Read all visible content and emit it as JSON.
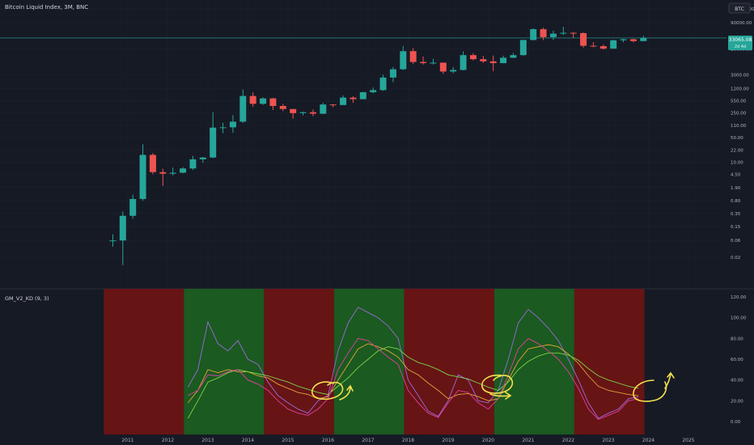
{
  "header": {
    "symbol_title": "Bitcoin Liquid Index, 3M, BNC",
    "symbol_button": "BTC"
  },
  "price_badge": {
    "value": "33065.08",
    "sub": "2d 4d"
  },
  "indicator": {
    "title": "GM_V2_KD (9, 3)"
  },
  "colors": {
    "background": "#161a25",
    "bull": "#26a69a",
    "bear": "#ef5350",
    "bull_band": "#1b5e20",
    "bear_band": "#6b1414",
    "k_line": "#9c6ade",
    "d_line": "#e0a43a",
    "j_line": "#7bd34a",
    "pink_line": "#e040a0",
    "annotation": "#f4e04d",
    "text": "#b2b5be",
    "price_line": "#26a69a"
  },
  "chart_data": [
    {
      "type": "candlestick",
      "scale": "log",
      "x_axis": {
        "label": "",
        "ticks": [
          "2011",
          "2012",
          "2013",
          "2014",
          "2015",
          "2016",
          "2017",
          "2018",
          "2019",
          "2020",
          "2021",
          "2022",
          "2023",
          "2024",
          "2025"
        ]
      },
      "y_axis": {
        "label": "",
        "ticks": [
          "180000.00",
          "90000.00",
          "16000.00",
          "3000.00",
          "1200.00",
          "550.00",
          "250.00",
          "110.00",
          "50.00",
          "22.00",
          "10.00",
          "4.50",
          "1.90",
          "0.80",
          "0.35",
          "0.15",
          "0.06",
          "0.02"
        ]
      },
      "last_price": 33065.08,
      "candles": [
        {
          "t": 2010.625,
          "o": 0.06,
          "h": 0.09,
          "l": 0.04,
          "c": 0.06
        },
        {
          "t": 2010.875,
          "o": 0.06,
          "h": 0.4,
          "l": 0.012,
          "c": 0.3
        },
        {
          "t": 2011.125,
          "o": 0.3,
          "h": 1.2,
          "l": 0.25,
          "c": 0.9
        },
        {
          "t": 2011.375,
          "o": 0.9,
          "h": 32,
          "l": 0.8,
          "c": 16
        },
        {
          "t": 2011.625,
          "o": 16,
          "h": 18,
          "l": 4.5,
          "c": 5.2
        },
        {
          "t": 2011.875,
          "o": 5.2,
          "h": 6.5,
          "l": 2.1,
          "c": 4.7
        },
        {
          "t": 2012.125,
          "o": 4.7,
          "h": 7,
          "l": 4.2,
          "c": 5
        },
        {
          "t": 2012.375,
          "o": 5,
          "h": 7.2,
          "l": 4.8,
          "c": 6.6
        },
        {
          "t": 2012.625,
          "o": 6.6,
          "h": 15,
          "l": 6,
          "c": 12
        },
        {
          "t": 2012.875,
          "o": 12,
          "h": 14,
          "l": 9.5,
          "c": 13.5
        },
        {
          "t": 2013.125,
          "o": 13.5,
          "h": 260,
          "l": 13,
          "c": 95
        },
        {
          "t": 2013.375,
          "o": 95,
          "h": 130,
          "l": 66,
          "c": 97
        },
        {
          "t": 2013.625,
          "o": 97,
          "h": 215,
          "l": 68,
          "c": 140
        },
        {
          "t": 2013.875,
          "o": 140,
          "h": 1150,
          "l": 130,
          "c": 750
        },
        {
          "t": 2014.125,
          "o": 750,
          "h": 950,
          "l": 370,
          "c": 450
        },
        {
          "t": 2014.375,
          "o": 450,
          "h": 680,
          "l": 420,
          "c": 640
        },
        {
          "t": 2014.625,
          "o": 640,
          "h": 660,
          "l": 300,
          "c": 390
        },
        {
          "t": 2014.875,
          "o": 390,
          "h": 450,
          "l": 280,
          "c": 320
        },
        {
          "t": 2015.125,
          "o": 320,
          "h": 320,
          "l": 170,
          "c": 245
        },
        {
          "t": 2015.375,
          "o": 245,
          "h": 270,
          "l": 210,
          "c": 260
        },
        {
          "t": 2015.625,
          "o": 260,
          "h": 310,
          "l": 200,
          "c": 235
        },
        {
          "t": 2015.875,
          "o": 235,
          "h": 480,
          "l": 230,
          "c": 430
        },
        {
          "t": 2016.125,
          "o": 430,
          "h": 440,
          "l": 360,
          "c": 415
        },
        {
          "t": 2016.375,
          "o": 415,
          "h": 780,
          "l": 420,
          "c": 675
        },
        {
          "t": 2016.625,
          "o": 675,
          "h": 740,
          "l": 480,
          "c": 610
        },
        {
          "t": 2016.875,
          "o": 610,
          "h": 980,
          "l": 600,
          "c": 960
        },
        {
          "t": 2017.125,
          "o": 960,
          "h": 1300,
          "l": 890,
          "c": 1100
        },
        {
          "t": 2017.375,
          "o": 1100,
          "h": 3000,
          "l": 1050,
          "c": 2500
        },
        {
          "t": 2017.625,
          "o": 2500,
          "h": 5000,
          "l": 1850,
          "c": 4300
        },
        {
          "t": 2017.875,
          "o": 4300,
          "h": 19700,
          "l": 4100,
          "c": 14000
        },
        {
          "t": 2018.125,
          "o": 14000,
          "h": 17000,
          "l": 6000,
          "c": 6900
        },
        {
          "t": 2018.375,
          "o": 6900,
          "h": 9900,
          "l": 5800,
          "c": 6400
        },
        {
          "t": 2018.625,
          "o": 6400,
          "h": 8500,
          "l": 5900,
          "c": 6600
        },
        {
          "t": 2018.875,
          "o": 6600,
          "h": 6700,
          "l": 3200,
          "c": 3700
        },
        {
          "t": 2019.125,
          "o": 3700,
          "h": 5000,
          "l": 3300,
          "c": 4100
        },
        {
          "t": 2019.375,
          "o": 4100,
          "h": 13800,
          "l": 4000,
          "c": 10800
        },
        {
          "t": 2019.625,
          "o": 10800,
          "h": 12300,
          "l": 7700,
          "c": 8300
        },
        {
          "t": 2019.875,
          "o": 8300,
          "h": 10300,
          "l": 6500,
          "c": 7200
        },
        {
          "t": 2020.125,
          "o": 7200,
          "h": 10500,
          "l": 3800,
          "c": 6400
        },
        {
          "t": 2020.375,
          "o": 6400,
          "h": 10400,
          "l": 6400,
          "c": 9100
        },
        {
          "t": 2020.625,
          "o": 9100,
          "h": 12400,
          "l": 8900,
          "c": 10800
        },
        {
          "t": 2020.875,
          "o": 10800,
          "h": 29000,
          "l": 10400,
          "c": 29000
        },
        {
          "t": 2021.125,
          "o": 29000,
          "h": 61700,
          "l": 28000,
          "c": 58800
        },
        {
          "t": 2021.375,
          "o": 58800,
          "h": 64800,
          "l": 28800,
          "c": 35000
        },
        {
          "t": 2021.625,
          "o": 35000,
          "h": 52900,
          "l": 29300,
          "c": 43800
        },
        {
          "t": 2021.875,
          "o": 43800,
          "h": 69000,
          "l": 40000,
          "c": 46300
        },
        {
          "t": 2022.125,
          "o": 46300,
          "h": 48200,
          "l": 33000,
          "c": 45500
        },
        {
          "t": 2022.375,
          "o": 45500,
          "h": 47400,
          "l": 17600,
          "c": 19900
        },
        {
          "t": 2022.625,
          "o": 19900,
          "h": 25200,
          "l": 18200,
          "c": 19400
        },
        {
          "t": 2022.875,
          "o": 19400,
          "h": 21500,
          "l": 15500,
          "c": 16500
        },
        {
          "t": 2023.125,
          "o": 16500,
          "h": 29200,
          "l": 16500,
          "c": 28500
        },
        {
          "t": 2023.375,
          "o": 28500,
          "h": 31400,
          "l": 24800,
          "c": 30400
        },
        {
          "t": 2023.625,
          "o": 30400,
          "h": 31800,
          "l": 24900,
          "c": 27000
        },
        {
          "t": 2023.875,
          "o": 27000,
          "h": 38000,
          "l": 26900,
          "c": 33065
        }
      ]
    },
    {
      "type": "line",
      "name": "GM_V2_KD (9, 3)",
      "y_axis": {
        "ticks": [
          "120.00",
          "100.00",
          "80.00",
          "60.00",
          "40.00",
          "20.00",
          "0.00"
        ],
        "range": [
          -10,
          125
        ]
      },
      "x_axis": {
        "ticks": [
          "2011",
          "2012",
          "2013",
          "2014",
          "2015",
          "2016",
          "2017",
          "2018",
          "2019",
          "2020",
          "2021",
          "2022",
          "2023",
          "2024",
          "2025"
        ]
      },
      "bands": [
        {
          "from": 2010.4,
          "to": 2012.4,
          "phase": "bear"
        },
        {
          "from": 2012.4,
          "to": 2014.4,
          "phase": "bull"
        },
        {
          "from": 2014.4,
          "to": 2016.15,
          "phase": "bear"
        },
        {
          "from": 2016.15,
          "to": 2017.9,
          "phase": "bull"
        },
        {
          "from": 2017.9,
          "to": 2020.15,
          "phase": "bear"
        },
        {
          "from": 2020.15,
          "to": 2022.15,
          "phase": "bull"
        },
        {
          "from": 2022.15,
          "to": 2023.9,
          "phase": "bear"
        }
      ],
      "x": [
        2012.5,
        2012.75,
        2013,
        2013.25,
        2013.5,
        2013.75,
        2014,
        2014.25,
        2014.5,
        2014.75,
        2015,
        2015.25,
        2015.5,
        2015.75,
        2016,
        2016.25,
        2016.5,
        2016.75,
        2017,
        2017.25,
        2017.5,
        2017.75,
        2018,
        2018.25,
        2018.5,
        2018.75,
        2019,
        2019.25,
        2019.5,
        2019.75,
        2020,
        2020.25,
        2020.5,
        2020.75,
        2021,
        2021.25,
        2021.5,
        2021.75,
        2022,
        2022.25,
        2022.5,
        2022.75,
        2023,
        2023.25,
        2023.5,
        2023.75
      ],
      "series": [
        {
          "role": "k",
          "values": [
            33,
            50,
            96,
            75,
            68,
            78,
            60,
            55,
            38,
            25,
            18,
            12,
            8,
            20,
            25,
            68,
            95,
            110,
            105,
            100,
            92,
            80,
            40,
            25,
            10,
            5,
            20,
            45,
            40,
            20,
            18,
            30,
            60,
            95,
            108,
            100,
            90,
            78,
            60,
            40,
            18,
            3,
            8,
            12,
            22,
            24
          ]
        },
        {
          "role": "d",
          "values": [
            18,
            30,
            50,
            47,
            50,
            48,
            48,
            44,
            42,
            36,
            32,
            28,
            26,
            22,
            24,
            40,
            55,
            70,
            75,
            72,
            68,
            62,
            50,
            45,
            37,
            30,
            22,
            26,
            27,
            24,
            20,
            22,
            40,
            58,
            70,
            72,
            74,
            72,
            65,
            56,
            44,
            34,
            30,
            28,
            26,
            25
          ]
        },
        {
          "role": "j",
          "values": [
            3,
            20,
            38,
            42,
            47,
            50,
            48,
            46,
            44,
            41,
            38,
            34,
            31,
            28,
            26,
            34,
            42,
            52,
            60,
            68,
            72,
            70,
            62,
            57,
            54,
            50,
            45,
            43,
            41,
            37,
            33,
            30,
            38,
            50,
            58,
            63,
            66,
            66,
            64,
            59,
            51,
            44,
            40,
            37,
            34,
            32
          ]
        },
        {
          "role": "pink",
          "values": [
            25,
            30,
            45,
            44,
            48,
            50,
            40,
            36,
            30,
            20,
            12,
            8,
            6,
            12,
            22,
            50,
            66,
            80,
            78,
            70,
            62,
            55,
            30,
            18,
            8,
            4,
            18,
            30,
            28,
            18,
            12,
            22,
            45,
            70,
            80,
            75,
            68,
            60,
            48,
            32,
            12,
            2,
            6,
            10,
            20,
            22
          ]
        }
      ]
    }
  ]
}
